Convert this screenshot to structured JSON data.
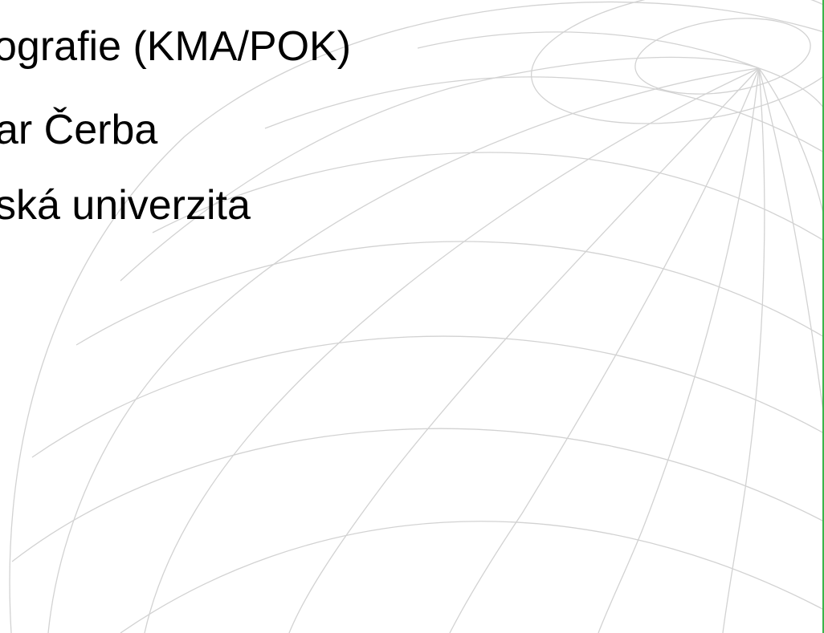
{
  "slide": {
    "lines": [
      "ografie (KMA/POK)",
      "ar Čerba",
      "ská univerzita"
    ]
  },
  "theme": {
    "background": "#ffffff",
    "text_color": "#000000",
    "grid_color": "#d2d2d2",
    "edge_accent": "#3cb44a"
  },
  "decoration": {
    "globe": "wireframe-globe-graphic"
  }
}
